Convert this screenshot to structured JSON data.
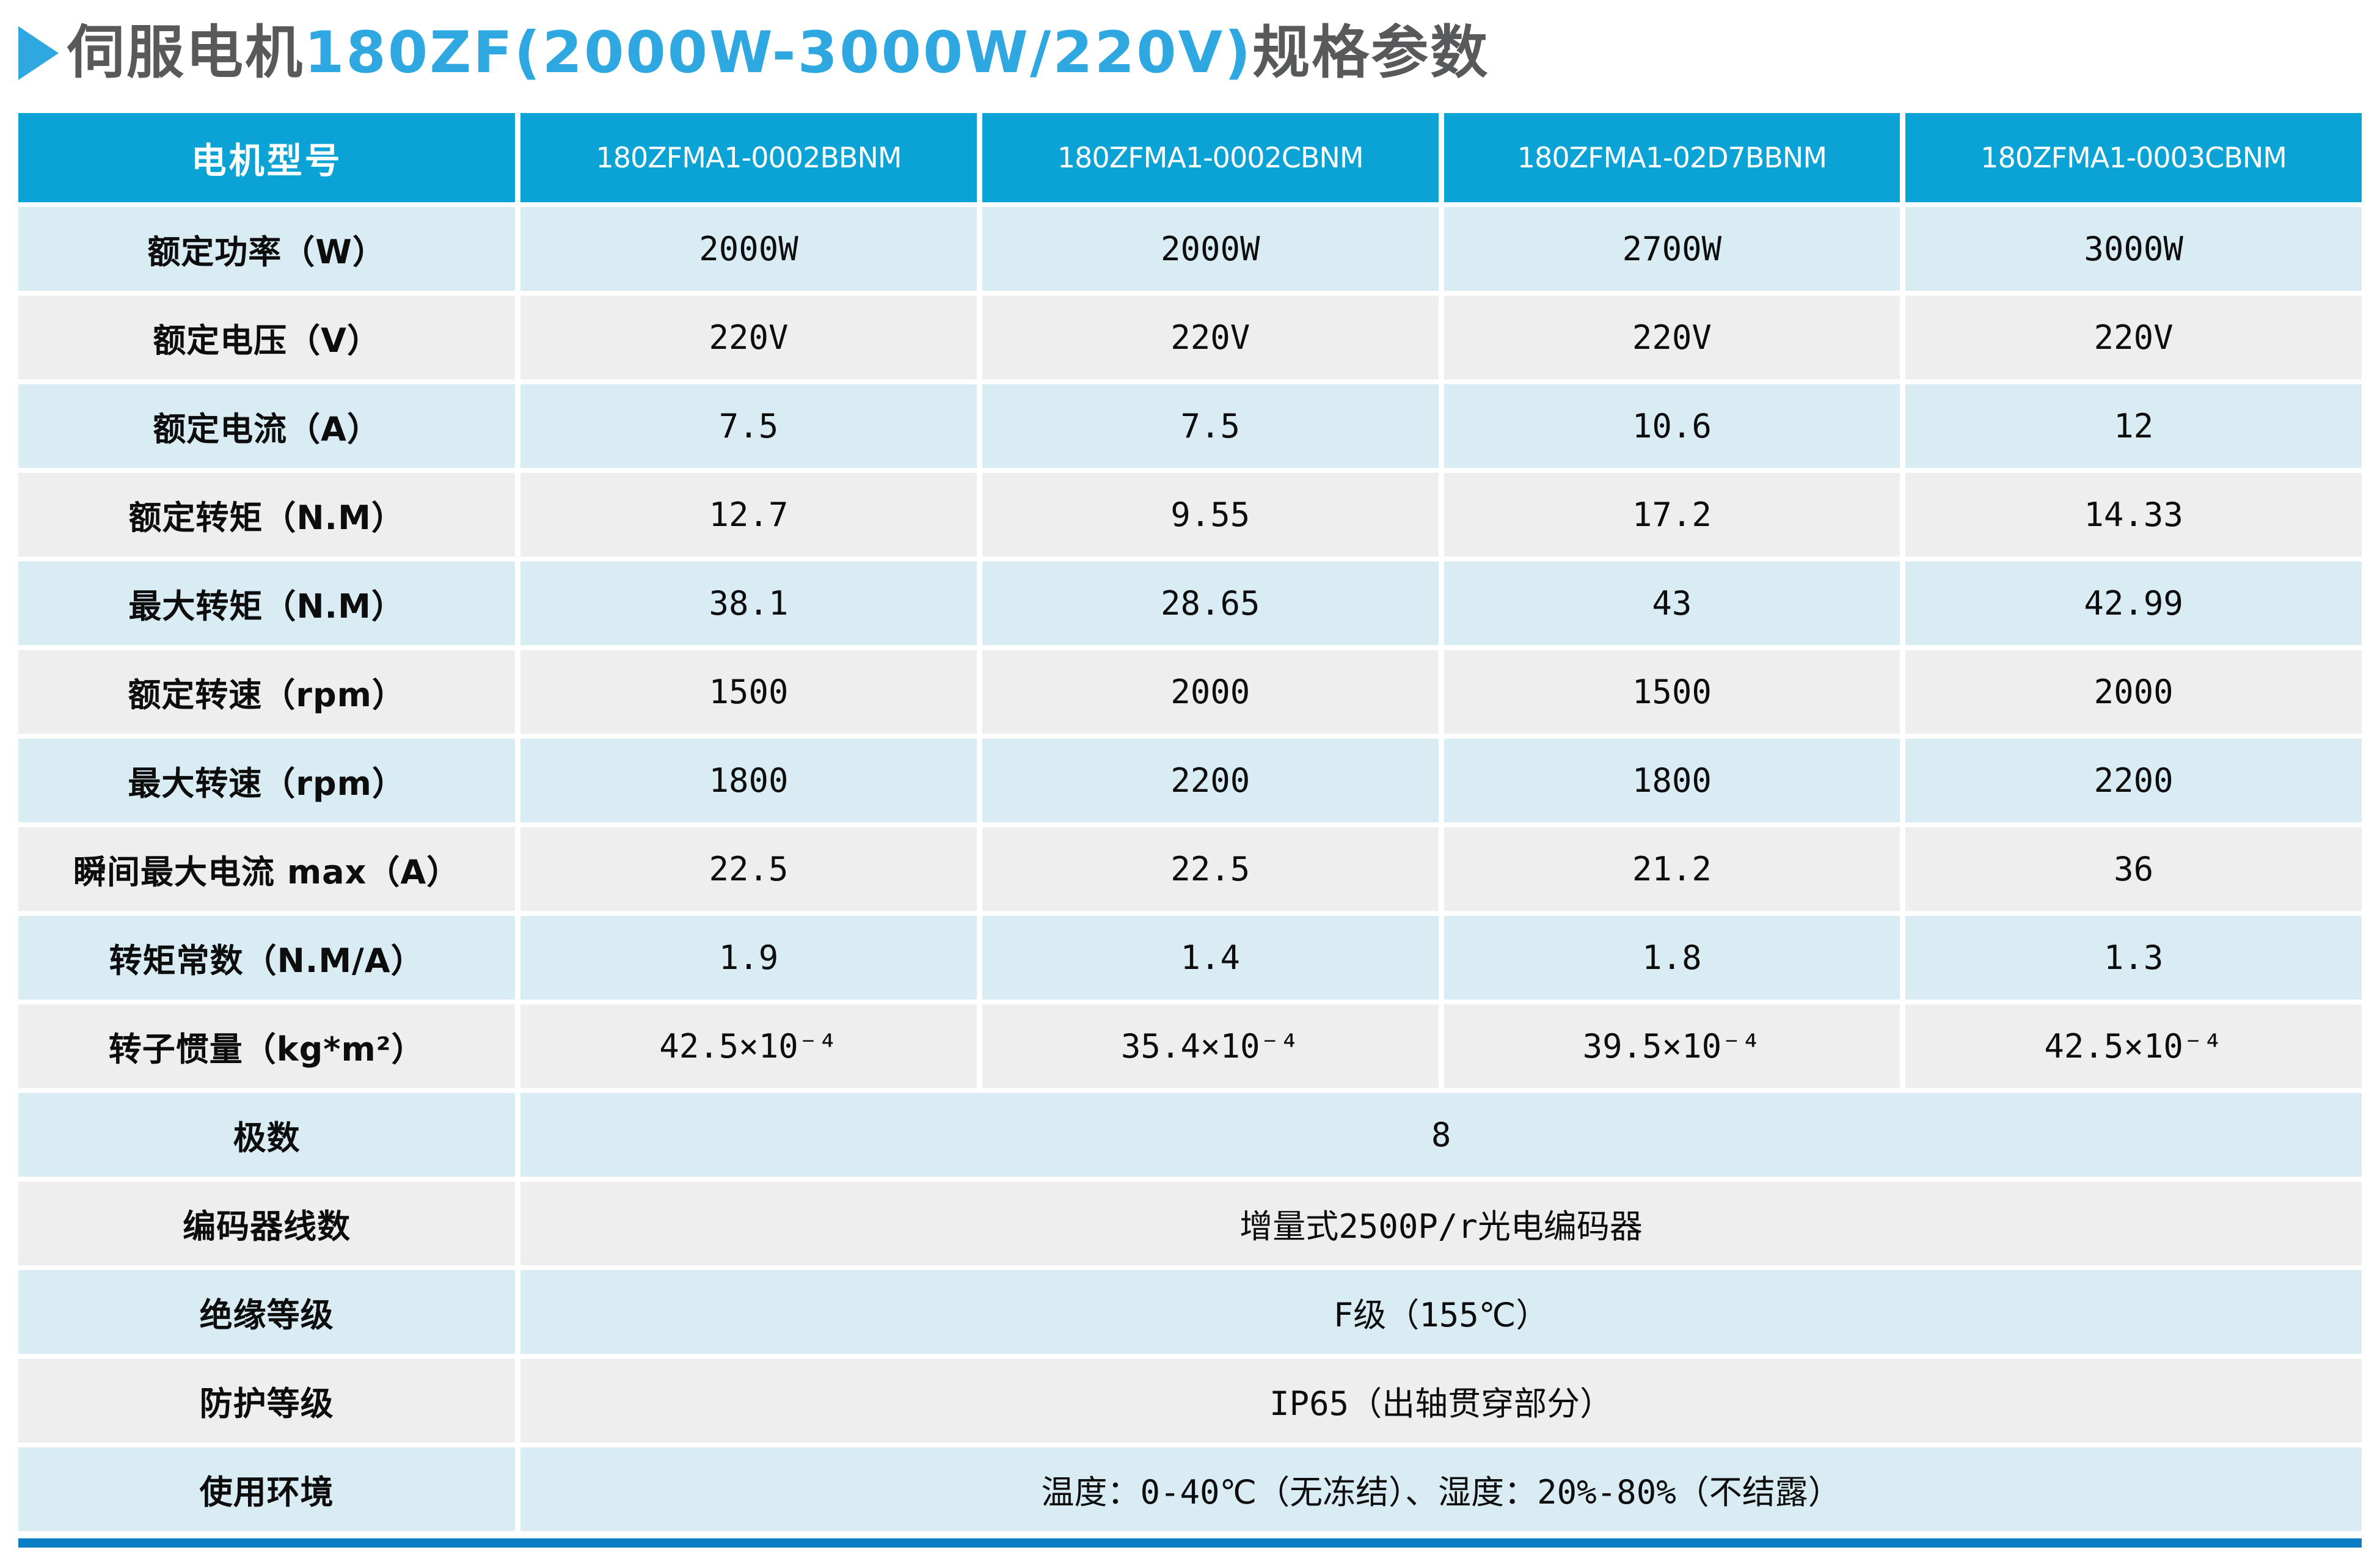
{
  "title": {
    "bullet": "▶",
    "prefix": "伺服电机",
    "highlight": "180ZF(2000W-3000W/220V)",
    "suffix": "规格参数"
  },
  "colors": {
    "header_bg": "#0ba3d6",
    "row_blue": "#d9ecf4",
    "row_gray": "#eeeeee",
    "accent_blue": "#2fa8e1",
    "title_gray": "#58595b",
    "bottom_bar": "#0a7ec4"
  },
  "table": {
    "header": [
      "电机型号",
      "180ZFMA1-0002BBNM",
      "180ZFMA1-0002CBNM",
      "180ZFMA1-02D7BBNM",
      "180ZFMA1-0003CBNM"
    ],
    "rows": [
      {
        "label": "额定功率（W）",
        "values": [
          "2000W",
          "2000W",
          "2700W",
          "3000W"
        ]
      },
      {
        "label": "额定电压（V）",
        "values": [
          "220V",
          "220V",
          "220V",
          "220V"
        ]
      },
      {
        "label": "额定电流（A）",
        "values": [
          "7.5",
          "7.5",
          "10.6",
          "12"
        ]
      },
      {
        "label": "额定转矩（N.M）",
        "values": [
          "12.7",
          "9.55",
          "17.2",
          "14.33"
        ]
      },
      {
        "label": "最大转矩（N.M）",
        "values": [
          "38.1",
          "28.65",
          "43",
          "42.99"
        ]
      },
      {
        "label": "额定转速（rpm）",
        "values": [
          "1500",
          "2000",
          "1500",
          "2000"
        ]
      },
      {
        "label": "最大转速（rpm）",
        "values": [
          "1800",
          "2200",
          "1800",
          "2200"
        ]
      },
      {
        "label": "瞬间最大电流 max（A）",
        "values": [
          "22.5",
          "22.5",
          "21.2",
          "36"
        ]
      },
      {
        "label": "转矩常数（N.M/A）",
        "values": [
          "1.9",
          "1.4",
          "1.8",
          "1.3"
        ]
      },
      {
        "label": "转子惯量（kg*m²）",
        "values": [
          "42.5×10⁻⁴",
          "35.4×10⁻⁴",
          "39.5×10⁻⁴",
          "42.5×10⁻⁴"
        ]
      },
      {
        "label": "极数",
        "merged": true,
        "value": "8"
      },
      {
        "label": "编码器线数",
        "merged": true,
        "value": "增量式2500P/r光电编码器"
      },
      {
        "label": "绝缘等级",
        "merged": true,
        "value": "F级（155℃）"
      },
      {
        "label": "防护等级",
        "merged": true,
        "value": "IP65（出轴贯穿部分）"
      },
      {
        "label": "使用环境",
        "merged": true,
        "value": "温度：0-40℃（无冻结）、湿度：20%-80%（不结露）"
      }
    ]
  }
}
